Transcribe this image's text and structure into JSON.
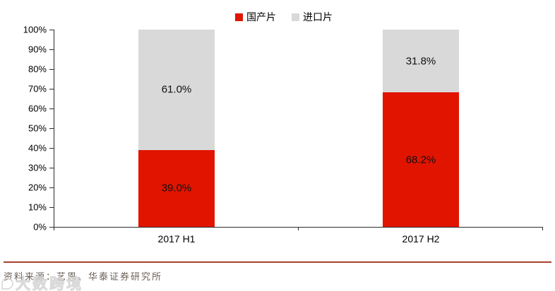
{
  "chart_data": {
    "type": "bar",
    "subtype": "stacked-percent",
    "title": "",
    "categories": [
      "2017 H1",
      "2017 H2"
    ],
    "series": [
      {
        "name": "国产片",
        "color": "#e11400",
        "values": [
          39.0,
          68.2
        ],
        "labels": [
          "39.0%",
          "68.2%"
        ]
      },
      {
        "name": "进口片",
        "color": "#d9d9d9",
        "values": [
          61.0,
          31.8
        ],
        "labels": [
          "61.0%",
          "31.8%"
        ]
      }
    ],
    "xlabel": "",
    "ylabel": "",
    "ylim": [
      0,
      100
    ],
    "ytick_step": 10,
    "ytick_labels": [
      "0%",
      "10%",
      "20%",
      "30%",
      "40%",
      "50%",
      "60%",
      "70%",
      "80%",
      "90%",
      "100%"
    ],
    "grid": false,
    "legend_position": "top-center"
  },
  "footer": {
    "source_text": "资料来源：艺恩、华泰证券研究所",
    "watermark_text": "大数跨境"
  },
  "colors": {
    "series_domestic": "#e11400",
    "series_imported": "#d9d9d9",
    "axis": "#2b2b2b",
    "footer_rule": "#a8402c",
    "source_text": "#6b6158"
  }
}
